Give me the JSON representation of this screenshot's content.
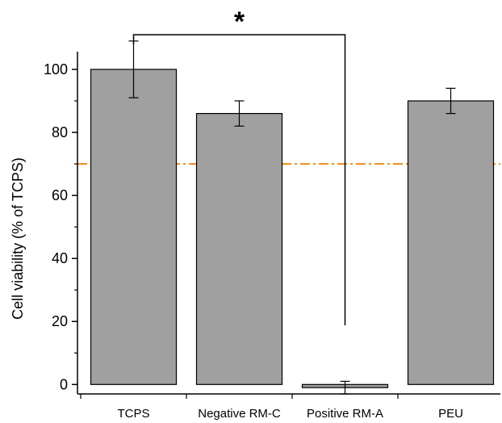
{
  "chart_data": {
    "type": "bar",
    "categories": [
      "TCPS",
      "Negative RM-C",
      "Positive RM-A",
      "PEU"
    ],
    "values": [
      100,
      86,
      -1,
      90
    ],
    "errors": [
      9,
      4,
      2,
      4
    ],
    "ylabel": "Cell viability (% of TCPS)",
    "xlabel": "",
    "ylim": [
      -3,
      111
    ],
    "yticks": [
      0,
      20,
      40,
      60,
      80,
      100
    ],
    "reference_line": {
      "value": 70,
      "style": "dash-dot"
    },
    "significance": {
      "from": "TCPS",
      "to": "Positive RM-A",
      "label": "*"
    },
    "grid": false,
    "colors": {
      "bar_fill": "#a0a0a0",
      "bar_stroke": "#000000",
      "reference_line": "#f0901e",
      "axis": "#000000"
    }
  }
}
